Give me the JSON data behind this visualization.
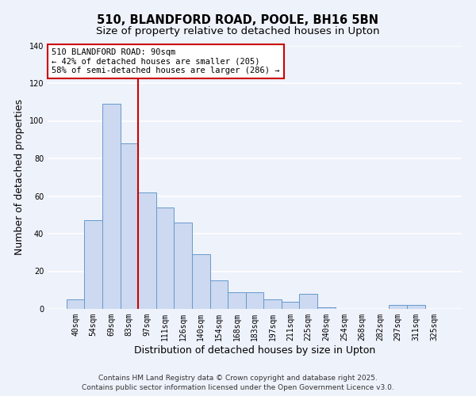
{
  "title_line1": "510, BLANDFORD ROAD, POOLE, BH16 5BN",
  "title_line2": "Size of property relative to detached houses in Upton",
  "xlabel": "Distribution of detached houses by size in Upton",
  "ylabel": "Number of detached properties",
  "bar_labels": [
    "40sqm",
    "54sqm",
    "69sqm",
    "83sqm",
    "97sqm",
    "111sqm",
    "126sqm",
    "140sqm",
    "154sqm",
    "168sqm",
    "183sqm",
    "197sqm",
    "211sqm",
    "225sqm",
    "240sqm",
    "254sqm",
    "268sqm",
    "282sqm",
    "297sqm",
    "311sqm",
    "325sqm"
  ],
  "bar_values": [
    5,
    47,
    109,
    88,
    62,
    54,
    46,
    29,
    15,
    9,
    9,
    5,
    4,
    8,
    1,
    0,
    0,
    0,
    2,
    2,
    0
  ],
  "bar_color": "#ccd9f0",
  "bar_edge_color": "#6699cc",
  "annotation_box_text": "510 BLANDFORD ROAD: 90sqm\n← 42% of detached houses are smaller (205)\n58% of semi-detached houses are larger (286) →",
  "annotation_box_color": "#ffffff",
  "annotation_box_edge_color": "#cc0000",
  "vline_color": "#cc0000",
  "vline_xindex": 3.5,
  "ylim": [
    0,
    140
  ],
  "yticks": [
    0,
    20,
    40,
    60,
    80,
    100,
    120,
    140
  ],
  "background_color": "#eef2fb",
  "footer_line1": "Contains HM Land Registry data © Crown copyright and database right 2025.",
  "footer_line2": "Contains public sector information licensed under the Open Government Licence v3.0.",
  "title_fontsize": 10.5,
  "subtitle_fontsize": 9.5,
  "axis_label_fontsize": 9,
  "tick_fontsize": 7,
  "annotation_fontsize": 7.5,
  "footer_fontsize": 6.5
}
